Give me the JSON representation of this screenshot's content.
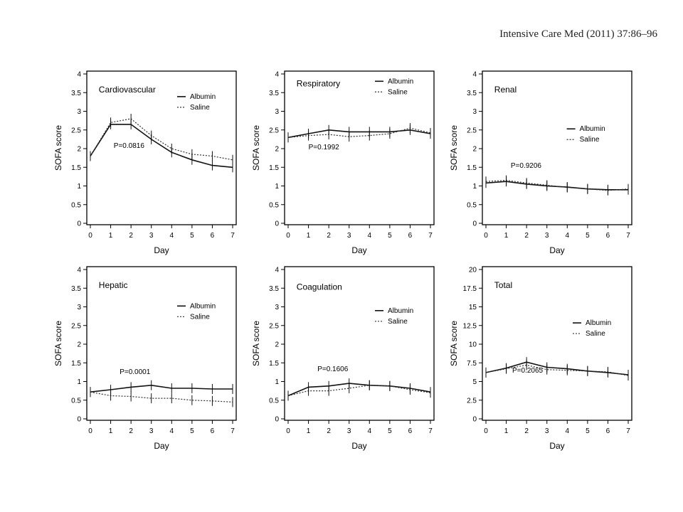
{
  "citation": "Intensive Care Med (2011) 37:86–96",
  "chart_data": [
    {
      "type": "line",
      "title": "Cardiovascular",
      "xlabel": "Day",
      "ylabel": "SOFA score",
      "x": [
        0,
        1,
        2,
        3,
        4,
        5,
        6,
        7
      ],
      "ylim": [
        0,
        4
      ],
      "yticks": [
        0,
        0.5,
        1,
        1.5,
        2,
        2.5,
        3,
        3.5,
        4
      ],
      "ytick_labels": [
        "0",
        "0.5",
        "1",
        "1.5",
        "2",
        "2.5",
        "3",
        "3.5",
        "4"
      ],
      "annotation": "P=0.0816",
      "legend": "top-right",
      "series": [
        {
          "name": "Albumin",
          "values": [
            1.8,
            2.65,
            2.65,
            2.25,
            1.9,
            1.7,
            1.55,
            1.5
          ]
        },
        {
          "name": "Saline",
          "values": [
            1.8,
            2.7,
            2.8,
            2.35,
            2.0,
            1.85,
            1.8,
            1.7
          ]
        }
      ]
    },
    {
      "type": "line",
      "title": "Respiratory",
      "xlabel": "Day",
      "ylabel": "SOFA score",
      "x": [
        0,
        1,
        2,
        3,
        4,
        5,
        6,
        7
      ],
      "ylim": [
        0,
        4
      ],
      "yticks": [
        0,
        0.5,
        1,
        1.5,
        2,
        2.5,
        3,
        3.5,
        4
      ],
      "ytick_labels": [
        "0",
        "0.5",
        "1",
        "1.5",
        "2",
        "2.5",
        "3",
        "3.5",
        "4"
      ],
      "annotation": "P=0.1992",
      "legend": "top-right",
      "series": [
        {
          "name": "Albumin",
          "values": [
            2.3,
            2.4,
            2.5,
            2.45,
            2.45,
            2.45,
            2.5,
            2.4
          ]
        },
        {
          "name": "Saline",
          "values": [
            2.3,
            2.35,
            2.38,
            2.32,
            2.35,
            2.4,
            2.55,
            2.42
          ]
        }
      ]
    },
    {
      "type": "line",
      "title": "Renal",
      "xlabel": "Day",
      "ylabel": "SOFA score",
      "x": [
        0,
        1,
        2,
        3,
        4,
        5,
        6,
        7
      ],
      "ylim": [
        0,
        4
      ],
      "yticks": [
        0,
        0.5,
        1,
        1.5,
        2,
        2.5,
        3,
        3.5,
        4
      ],
      "ytick_labels": [
        "0",
        "0.5",
        "1",
        "1.5",
        "2",
        "2.5",
        "3",
        "3.5",
        "4"
      ],
      "annotation": "P=0.9206",
      "legend": "middle-right",
      "series": [
        {
          "name": "Albumin",
          "values": [
            1.08,
            1.12,
            1.05,
            1.0,
            0.97,
            0.92,
            0.9,
            0.9
          ]
        },
        {
          "name": "Saline",
          "values": [
            1.12,
            1.15,
            1.08,
            1.02,
            0.96,
            0.92,
            0.88,
            0.92
          ]
        }
      ]
    },
    {
      "type": "line",
      "title": "Hepatic",
      "xlabel": "Day",
      "ylabel": "SOFA score",
      "x": [
        0,
        1,
        2,
        3,
        4,
        5,
        6,
        7
      ],
      "ylim": [
        0,
        4
      ],
      "yticks": [
        0,
        0.5,
        1,
        1.5,
        2,
        2.5,
        3,
        3.5,
        4
      ],
      "ytick_labels": [
        "0",
        "0.5",
        "1",
        "1.5",
        "2",
        "2.5",
        "3",
        "3.5",
        "4"
      ],
      "annotation": "P=0.0001",
      "legend": "top-right",
      "series": [
        {
          "name": "Albumin",
          "values": [
            0.72,
            0.78,
            0.85,
            0.9,
            0.82,
            0.82,
            0.8,
            0.8
          ]
        },
        {
          "name": "Saline",
          "values": [
            0.72,
            0.62,
            0.6,
            0.55,
            0.55,
            0.5,
            0.48,
            0.45
          ]
        }
      ]
    },
    {
      "type": "line",
      "title": "Coagulation",
      "xlabel": "Day",
      "ylabel": "SOFA score",
      "x": [
        0,
        1,
        2,
        3,
        4,
        5,
        6,
        7
      ],
      "ylim": [
        0,
        4
      ],
      "yticks": [
        0,
        0.5,
        1,
        1.5,
        2,
        2.5,
        3,
        3.5,
        4
      ],
      "ytick_labels": [
        "0",
        "0.5",
        "1",
        "1.5",
        "2",
        "2.5",
        "3",
        "3.5",
        "4"
      ],
      "annotation": "P=0.1606",
      "legend": "middle-right",
      "series": [
        {
          "name": "Albumin",
          "values": [
            0.62,
            0.85,
            0.88,
            0.95,
            0.9,
            0.88,
            0.82,
            0.72
          ]
        },
        {
          "name": "Saline",
          "values": [
            0.62,
            0.75,
            0.75,
            0.82,
            0.9,
            0.88,
            0.78,
            0.7
          ]
        }
      ]
    },
    {
      "type": "line",
      "title": "Total",
      "xlabel": "Day",
      "ylabel": "SOFA score",
      "x": [
        0,
        1,
        2,
        3,
        4,
        5,
        6,
        7
      ],
      "ylim": [
        0,
        20
      ],
      "yticks": [
        0,
        2.5,
        5,
        7.5,
        10,
        12.5,
        15,
        17.5,
        20
      ],
      "ytick_labels": [
        "0",
        "2.5",
        "5",
        "7.5",
        "10",
        "12.5",
        "15",
        "17.5",
        "20"
      ],
      "annotation": "P=0.2065",
      "legend": "middle-right",
      "series": [
        {
          "name": "Albumin",
          "values": [
            6.2,
            6.8,
            7.6,
            6.9,
            6.7,
            6.4,
            6.2,
            5.9
          ]
        },
        {
          "name": "Saline",
          "values": [
            6.2,
            6.7,
            7.2,
            6.6,
            6.5,
            6.4,
            6.3,
            5.8
          ]
        }
      ]
    }
  ]
}
